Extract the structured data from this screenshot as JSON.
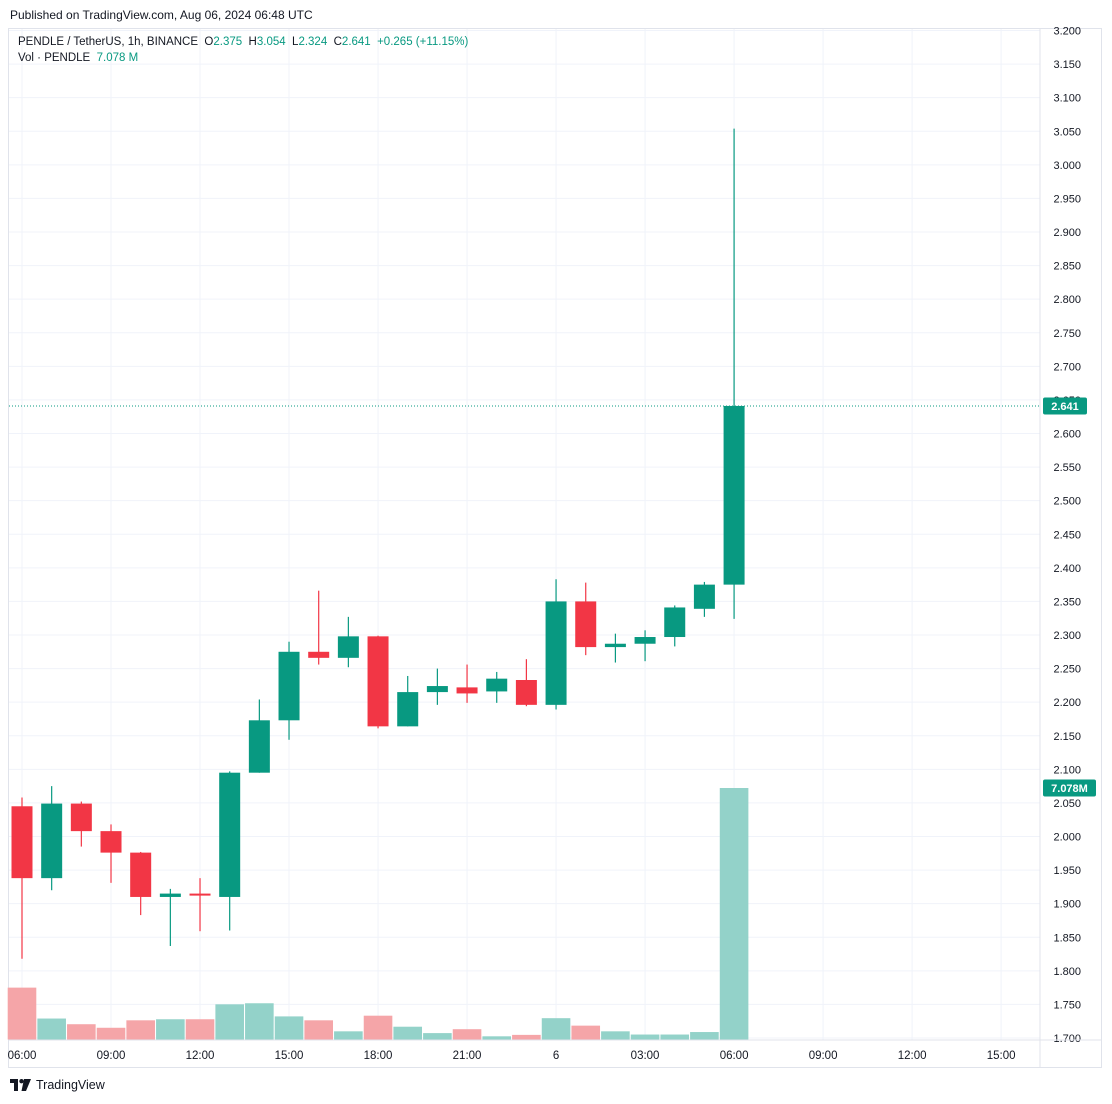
{
  "published": "Published on TradingView.com, Aug 06, 2024 06:48 UTC",
  "legend": {
    "symbol": "PENDLE / TetherUS, 1h, BINANCE",
    "o_label": "O",
    "o_value": "2.375",
    "h_label": "H",
    "h_value": "3.054",
    "l_label": "L",
    "l_value": "2.324",
    "c_label": "C",
    "c_value": "2.641",
    "change": "+0.265 (+11.15%)",
    "vol_label": "Vol · PENDLE",
    "vol_value": "7.078 M"
  },
  "footer": {
    "brand": "TradingView"
  },
  "colors": {
    "up": "#089981",
    "down": "#f23645",
    "vol_up": "#93d2c9",
    "vol_down": "#f5a5a8",
    "grid": "#f0f3fa",
    "text": "#131722"
  },
  "chart_data": {
    "type": "candlestick",
    "title": "PENDLE / TetherUS, 1h, BINANCE",
    "y_ticks": [
      "3.200",
      "3.150",
      "3.100",
      "3.050",
      "3.000",
      "2.950",
      "2.900",
      "2.850",
      "2.800",
      "2.750",
      "2.700",
      "2.650",
      "2.600",
      "2.550",
      "2.500",
      "2.450",
      "2.400",
      "2.350",
      "2.300",
      "2.250",
      "2.200",
      "2.150",
      "2.100",
      "2.050",
      "2.000",
      "1.950",
      "1.900",
      "1.850",
      "1.800",
      "1.750",
      "1.700"
    ],
    "ylim": [
      1.7,
      3.2
    ],
    "x_ticks": [
      "06:00",
      "09:00",
      "12:00",
      "15:00",
      "18:00",
      "21:00",
      "6",
      "03:00",
      "06:00",
      "09:00",
      "12:00",
      "15:00"
    ],
    "x_tick_positions": [
      0,
      3,
      6,
      9,
      12,
      15,
      18,
      21,
      24,
      27,
      30,
      33
    ],
    "last_price_label": "2.641",
    "last_volume_label": "7.078M",
    "candles": [
      {
        "o": 2.045,
        "h": 2.058,
        "l": 1.818,
        "c": 1.938
      },
      {
        "o": 1.938,
        "h": 2.075,
        "l": 1.92,
        "c": 2.049
      },
      {
        "o": 2.049,
        "h": 2.052,
        "l": 1.985,
        "c": 2.008
      },
      {
        "o": 2.008,
        "h": 2.018,
        "l": 1.931,
        "c": 1.976
      },
      {
        "o": 1.976,
        "h": 1.977,
        "l": 1.883,
        "c": 1.91
      },
      {
        "o": 1.91,
        "h": 1.922,
        "l": 1.837,
        "c": 1.915
      },
      {
        "o": 1.915,
        "h": 1.938,
        "l": 1.859,
        "c": 1.912
      },
      {
        "o": 1.91,
        "h": 2.097,
        "l": 1.86,
        "c": 2.095
      },
      {
        "o": 2.095,
        "h": 2.204,
        "l": 2.095,
        "c": 2.173
      },
      {
        "o": 2.173,
        "h": 2.29,
        "l": 2.144,
        "c": 2.275
      },
      {
        "o": 2.275,
        "h": 2.366,
        "l": 2.256,
        "c": 2.266
      },
      {
        "o": 2.266,
        "h": 2.327,
        "l": 2.252,
        "c": 2.298
      },
      {
        "o": 2.298,
        "h": 2.299,
        "l": 2.161,
        "c": 2.164
      },
      {
        "o": 2.164,
        "h": 2.239,
        "l": 2.164,
        "c": 2.215
      },
      {
        "o": 2.215,
        "h": 2.25,
        "l": 2.196,
        "c": 2.224
      },
      {
        "o": 2.222,
        "h": 2.256,
        "l": 2.199,
        "c": 2.213
      },
      {
        "o": 2.216,
        "h": 2.245,
        "l": 2.199,
        "c": 2.235
      },
      {
        "o": 2.233,
        "h": 2.264,
        "l": 2.194,
        "c": 2.196
      },
      {
        "o": 2.196,
        "h": 2.383,
        "l": 2.189,
        "c": 2.35
      },
      {
        "o": 2.35,
        "h": 2.378,
        "l": 2.27,
        "c": 2.282
      },
      {
        "o": 2.282,
        "h": 2.302,
        "l": 2.259,
        "c": 2.287
      },
      {
        "o": 2.287,
        "h": 2.307,
        "l": 2.261,
        "c": 2.297
      },
      {
        "o": 2.297,
        "h": 2.344,
        "l": 2.283,
        "c": 2.341
      },
      {
        "o": 2.339,
        "h": 2.379,
        "l": 2.327,
        "c": 2.375
      },
      {
        "o": 2.375,
        "h": 3.054,
        "l": 2.324,
        "c": 2.641
      }
    ],
    "volume_axis_max": 2.2,
    "volume_units": "M",
    "volumes": [
      1.46,
      0.59,
      0.43,
      0.33,
      0.54,
      0.57,
      0.57,
      0.99,
      1.02,
      0.65,
      0.54,
      0.23,
      0.67,
      0.36,
      0.18,
      0.29,
      0.09,
      0.13,
      0.6,
      0.39,
      0.23,
      0.14,
      0.14,
      0.21,
      7.078
    ]
  }
}
